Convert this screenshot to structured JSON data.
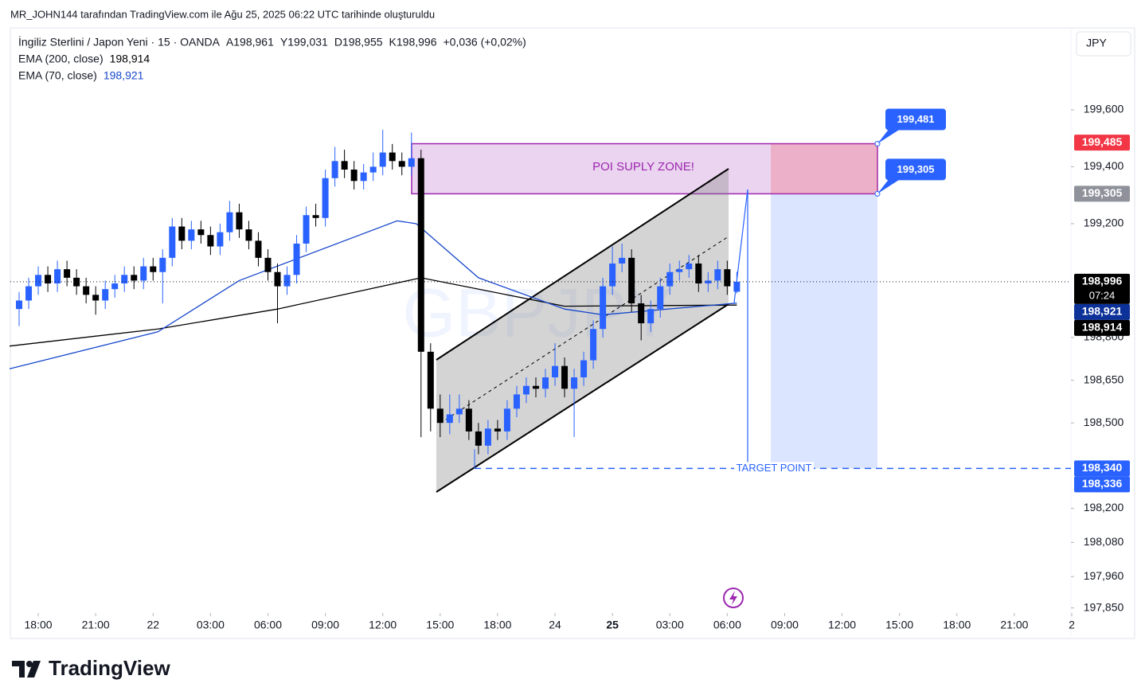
{
  "header": {
    "credit": "MR_JOHN144 tarafından TradingView.com ile Ağu 25, 2025 06:22 UTC tarihinde oluşturuldu"
  },
  "chart_data": {
    "type": "candlestick",
    "symbol": "İngiliz Sterlini / Japon Yeni · 15 · OANDA",
    "ohlc_labels": [
      "A198,961",
      "Y199,031",
      "D198,955",
      "K198,996"
    ],
    "change": "+0,036 (+0,02%)",
    "currency": "JPY",
    "watermark": "GBPJPY",
    "xlim": [
      -5.833,
      215.833
    ],
    "xticks": [
      {
        "value": 0,
        "label": "18:00"
      },
      {
        "value": 12,
        "label": "21:00"
      },
      {
        "value": 24,
        "label": "22"
      },
      {
        "value": 36,
        "label": "03:00"
      },
      {
        "value": 48,
        "label": "06:00"
      },
      {
        "value": 60,
        "label": "09:00"
      },
      {
        "value": 72,
        "label": "12:00"
      },
      {
        "value": 84,
        "label": "15:00"
      },
      {
        "value": 96,
        "label": "18:00"
      },
      {
        "value": 108,
        "label": "24"
      },
      {
        "value": 120,
        "label": "25"
      },
      {
        "value": 132,
        "label": "03:00"
      },
      {
        "value": 144,
        "label": "06:00"
      },
      {
        "value": 156,
        "label": "09:00"
      },
      {
        "value": 168,
        "label": "12:00"
      },
      {
        "value": 180,
        "label": "15:00"
      },
      {
        "value": 192,
        "label": "18:00"
      },
      {
        "value": 204,
        "label": "21:00"
      },
      {
        "value": 216,
        "label": "2"
      }
    ],
    "ylim": [
      197.832,
      199.888
    ],
    "yticks": [
      {
        "value": 199.6,
        "label": "199,600"
      },
      {
        "value": 199.4,
        "label": "199,400"
      },
      {
        "value": 199.2,
        "label": "199,200"
      },
      {
        "value": 198.8,
        "label": "198,800"
      },
      {
        "value": 198.65,
        "label": "198,650"
      },
      {
        "value": 198.5,
        "label": "198,500"
      },
      {
        "value": 198.2,
        "label": "198,200"
      },
      {
        "value": 198.08,
        "label": "198,080"
      },
      {
        "value": 197.96,
        "label": "197,960"
      },
      {
        "value": 197.85,
        "label": "197,850"
      }
    ],
    "up_color": "#2962ff",
    "down_color": "#000000",
    "x": [
      -4,
      -2,
      0,
      2,
      4,
      6,
      8,
      10,
      12,
      14,
      16,
      18,
      20,
      22,
      24,
      26,
      28,
      30,
      32,
      34,
      36,
      38,
      40,
      42,
      44,
      46,
      48,
      50,
      52,
      54,
      56,
      58,
      60,
      62,
      64,
      66,
      68,
      70,
      72,
      74,
      76,
      78,
      80,
      82,
      84,
      86,
      88,
      90,
      92,
      94,
      96,
      98,
      100,
      102,
      104,
      106,
      108,
      110,
      112,
      114,
      116,
      118,
      120,
      122,
      124,
      126,
      128,
      130,
      132,
      134,
      136,
      138,
      140,
      142,
      144,
      146
    ],
    "candles": {
      "open": [
        198.9,
        198.93,
        198.98,
        199.02,
        198.99,
        199.04,
        199.01,
        198.98,
        198.95,
        198.93,
        198.97,
        198.99,
        199.02,
        199.0,
        199.05,
        199.03,
        199.08,
        199.19,
        199.14,
        199.18,
        199.16,
        199.12,
        199.17,
        199.24,
        199.18,
        199.14,
        199.08,
        199.03,
        198.98,
        199.02,
        199.13,
        199.23,
        199.22,
        199.36,
        199.42,
        199.39,
        199.35,
        199.38,
        199.4,
        199.45,
        199.42,
        199.4,
        199.43,
        198.75,
        198.55,
        198.5,
        198.53,
        198.55,
        198.47,
        198.42,
        198.48,
        198.47,
        198.55,
        198.6,
        198.63,
        198.62,
        198.66,
        198.7,
        198.62,
        198.66,
        198.72,
        198.83,
        198.98,
        199.06,
        199.08,
        198.92,
        198.85,
        198.9,
        198.98,
        199.03,
        199.04,
        199.06,
        198.99,
        199.0,
        199.04,
        198.961
      ],
      "high": [
        198.96,
        199.01,
        199.05,
        199.05,
        199.07,
        199.07,
        199.04,
        199.01,
        198.98,
        199.0,
        199.02,
        199.05,
        199.05,
        199.08,
        199.08,
        199.11,
        199.22,
        199.22,
        199.21,
        199.21,
        199.19,
        199.2,
        199.28,
        199.27,
        199.21,
        199.17,
        199.11,
        199.06,
        199.05,
        199.16,
        199.26,
        199.27,
        199.39,
        199.47,
        199.46,
        199.42,
        199.41,
        199.45,
        199.53,
        199.48,
        199.45,
        199.52,
        199.46,
        198.78,
        198.6,
        198.6,
        198.6,
        198.58,
        198.5,
        198.51,
        198.51,
        198.58,
        198.63,
        198.66,
        198.66,
        198.69,
        198.78,
        198.73,
        198.69,
        198.75,
        198.86,
        199.01,
        199.12,
        199.13,
        199.11,
        198.95,
        198.93,
        199.01,
        199.06,
        199.07,
        199.09,
        199.09,
        199.03,
        199.07,
        199.07,
        199.031
      ],
      "low": [
        198.84,
        198.9,
        198.95,
        198.96,
        198.96,
        198.98,
        198.95,
        198.92,
        198.88,
        198.9,
        198.94,
        198.96,
        198.97,
        198.97,
        199.0,
        198.92,
        199.05,
        199.11,
        199.11,
        199.13,
        199.09,
        199.09,
        199.14,
        199.15,
        199.11,
        199.05,
        199.0,
        198.85,
        198.95,
        198.99,
        199.1,
        199.19,
        199.19,
        199.33,
        199.36,
        199.32,
        199.32,
        199.35,
        199.37,
        199.39,
        199.37,
        199.37,
        198.45,
        198.47,
        198.45,
        198.46,
        198.5,
        198.44,
        198.39,
        198.39,
        198.44,
        198.44,
        198.52,
        198.57,
        198.59,
        198.59,
        198.63,
        198.59,
        198.45,
        198.63,
        198.69,
        198.8,
        198.95,
        199.03,
        198.89,
        198.79,
        198.82,
        198.87,
        198.95,
        199.0,
        199.01,
        198.96,
        198.96,
        198.97,
        198.95,
        198.955
      ],
      "close": [
        198.93,
        198.98,
        199.02,
        198.99,
        199.04,
        199.01,
        198.98,
        198.95,
        198.93,
        198.97,
        198.99,
        199.02,
        199.0,
        199.05,
        199.03,
        199.08,
        199.19,
        199.14,
        199.18,
        199.16,
        199.12,
        199.17,
        199.24,
        199.18,
        199.14,
        199.08,
        199.03,
        198.98,
        199.02,
        199.13,
        199.23,
        199.22,
        199.36,
        199.42,
        199.39,
        199.35,
        199.38,
        199.4,
        199.45,
        199.42,
        199.4,
        199.43,
        198.75,
        198.55,
        198.5,
        198.53,
        198.55,
        198.47,
        198.42,
        198.48,
        198.47,
        198.55,
        198.6,
        198.63,
        198.62,
        198.66,
        198.7,
        198.62,
        198.66,
        198.72,
        198.83,
        198.98,
        199.06,
        199.08,
        198.92,
        198.85,
        198.9,
        198.98,
        199.03,
        199.04,
        199.06,
        198.99,
        199.0,
        199.04,
        198.98,
        198.996
      ]
    },
    "indicators": [
      {
        "name": "EMA (200, close)",
        "value_label": "198,914",
        "color": "#000000",
        "x": [
          -6,
          25,
          50,
          80,
          110,
          146
        ],
        "values": [
          198.77,
          198.83,
          198.9,
          199.01,
          198.91,
          198.914
        ]
      },
      {
        "name": "EMA (70, close)",
        "value_label": "198,921",
        "color": "#1848cc",
        "x": [
          -6,
          25,
          42,
          75,
          79,
          92,
          110,
          118,
          146
        ],
        "values": [
          198.69,
          198.82,
          199.0,
          199.21,
          199.2,
          199.01,
          198.9,
          198.88,
          198.921
        ]
      }
    ],
    "zone": {
      "label": "POI SUPLY ZONE!",
      "top": 199.481,
      "top_label": "199,481",
      "bottom": 199.305,
      "bottom_label": "199,305"
    },
    "target": {
      "label": "TARGET POINT",
      "value": 198.34
    },
    "price_badges": [
      {
        "value": 199.485,
        "label": "199,485",
        "color": "#f23645"
      },
      {
        "value": 199.305,
        "label": "199,305",
        "color": "#8f929b"
      },
      {
        "value": 198.996,
        "label": "198,996",
        "sub_label": "07:24",
        "color": "#000000"
      },
      {
        "value": 198.921,
        "label": "198,921",
        "color": "#0c3299"
      },
      {
        "value": 198.914,
        "label": "198,914",
        "color": "#000000"
      },
      {
        "value": 198.34,
        "label": "198,340",
        "color": "#2962ff"
      },
      {
        "value": 198.336,
        "label": "198,336",
        "color": "#2962ff"
      }
    ]
  },
  "footer": {
    "brand": "TradingView"
  }
}
